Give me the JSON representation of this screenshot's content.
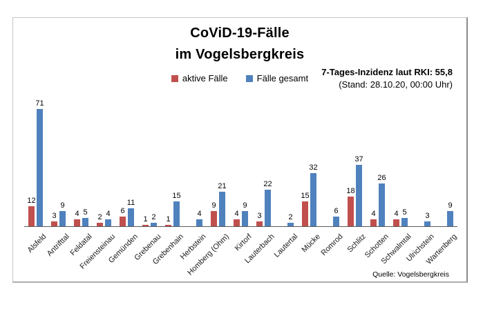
{
  "title": {
    "line1": "CoViD-19-Fälle",
    "line2": "im Vogelsbergkreis"
  },
  "legend": [
    {
      "label": "aktive Fälle",
      "color": "#C0504D"
    },
    {
      "label": "Fälle gesamt",
      "color": "#4F81BD"
    }
  ],
  "annotation": {
    "line1": "7-Tages-Inzidenz laut RKI: 55,8",
    "line2": "(Stand: 28.10.20, 00:00 Uhr)"
  },
  "source": "Quelle: Vogelsbergkreis",
  "chart_data": {
    "type": "bar",
    "title": "CoViD-19-Fälle im Vogelsbergkreis",
    "categories": [
      "Alsfeld",
      "Antrifttal",
      "Feldatal",
      "Freiensteinau",
      "Gemünden",
      "Grebenau",
      "Grebenhain",
      "Herbstein",
      "Homberg (Ohm)",
      "Kirtorf",
      "Lauterbach",
      "Lautertal",
      "Mücke",
      "Romrod",
      "Schlitz",
      "Schotten",
      "Schwalmtal",
      "Ulrichstein",
      "Wartenberg"
    ],
    "series": [
      {
        "name": "aktive Fälle",
        "color": "#C0504D",
        "values": [
          12,
          3,
          4,
          2,
          6,
          1,
          1,
          null,
          9,
          4,
          3,
          null,
          15,
          null,
          18,
          4,
          4,
          null,
          null
        ]
      },
      {
        "name": "Fälle gesamt",
        "color": "#4F81BD",
        "values": [
          71,
          9,
          5,
          4,
          11,
          2,
          15,
          4,
          21,
          9,
          22,
          2,
          32,
          6,
          37,
          26,
          5,
          3,
          9
        ]
      }
    ],
    "xlabel": "",
    "ylabel": "",
    "ylim": [
      0,
      75
    ],
    "grid": false,
    "legend_position": "top-center",
    "value_labels": true
  }
}
